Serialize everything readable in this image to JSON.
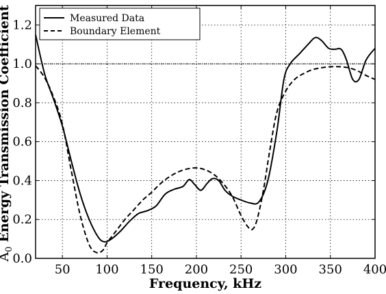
{
  "chart_data": {
    "type": "line",
    "xlabel": "Frequency, kHz",
    "ylabel_main": "Energy Transmission Coefficient",
    "ylabel_prefix": "A",
    "ylabel_subscript": "0",
    "xlim": [
      20,
      400
    ],
    "ylim": [
      0.0,
      1.3
    ],
    "x_ticks": [
      50,
      100,
      150,
      200,
      250,
      300,
      350,
      400
    ],
    "y_ticks": [
      0.0,
      0.2,
      0.4,
      0.6,
      0.8,
      1.0,
      1.2
    ],
    "x_tick_labels": [
      "50",
      "100",
      "150",
      "200",
      "250",
      "300",
      "350",
      "400"
    ],
    "y_tick_labels": [
      "0.0",
      "0.2",
      "0.4",
      "0.6",
      "0.8",
      "1.0",
      "1.2"
    ],
    "grid": true,
    "legend_position": "top-left",
    "reference_line": {
      "y": 1.0
    },
    "series": [
      {
        "name": "Measured Data",
        "style": "solid",
        "color": "#000000",
        "x": [
          20,
          30,
          40,
          50,
          60,
          70,
          80,
          90,
          97,
          105,
          115,
          125,
          135,
          145,
          155,
          165,
          175,
          185,
          192,
          198,
          205,
          212,
          218,
          225,
          232,
          240,
          250,
          260,
          270,
          280,
          290,
          298,
          305,
          315,
          325,
          333,
          340,
          348,
          355,
          362,
          368,
          375,
          382,
          390,
          400
        ],
        "y": [
          1.15,
          0.95,
          0.82,
          0.68,
          0.5,
          0.33,
          0.2,
          0.11,
          0.085,
          0.1,
          0.14,
          0.19,
          0.23,
          0.245,
          0.27,
          0.33,
          0.355,
          0.37,
          0.405,
          0.38,
          0.35,
          0.385,
          0.41,
          0.4,
          0.35,
          0.32,
          0.3,
          0.285,
          0.29,
          0.4,
          0.65,
          0.92,
          1.0,
          1.05,
          1.1,
          1.135,
          1.12,
          1.08,
          1.075,
          1.075,
          1.02,
          0.92,
          0.92,
          1.02,
          1.08
        ]
      },
      {
        "name": "Boundary Element",
        "style": "dashed",
        "color": "#000000",
        "x": [
          20,
          30,
          40,
          50,
          60,
          70,
          80,
          88,
          95,
          100,
          110,
          120,
          130,
          140,
          150,
          160,
          170,
          180,
          190,
          200,
          210,
          220,
          230,
          240,
          250,
          258,
          263,
          268,
          275,
          282,
          290,
          300,
          310,
          320,
          330,
          340,
          350,
          360,
          370,
          380,
          390,
          400
        ],
        "y": [
          0.99,
          0.93,
          0.83,
          0.69,
          0.45,
          0.22,
          0.07,
          0.03,
          0.04,
          0.08,
          0.14,
          0.2,
          0.25,
          0.3,
          0.34,
          0.385,
          0.42,
          0.445,
          0.46,
          0.465,
          0.455,
          0.43,
          0.385,
          0.32,
          0.22,
          0.16,
          0.15,
          0.2,
          0.35,
          0.55,
          0.75,
          0.86,
          0.92,
          0.95,
          0.97,
          0.98,
          0.985,
          0.985,
          0.98,
          0.965,
          0.94,
          0.92
        ]
      }
    ]
  }
}
